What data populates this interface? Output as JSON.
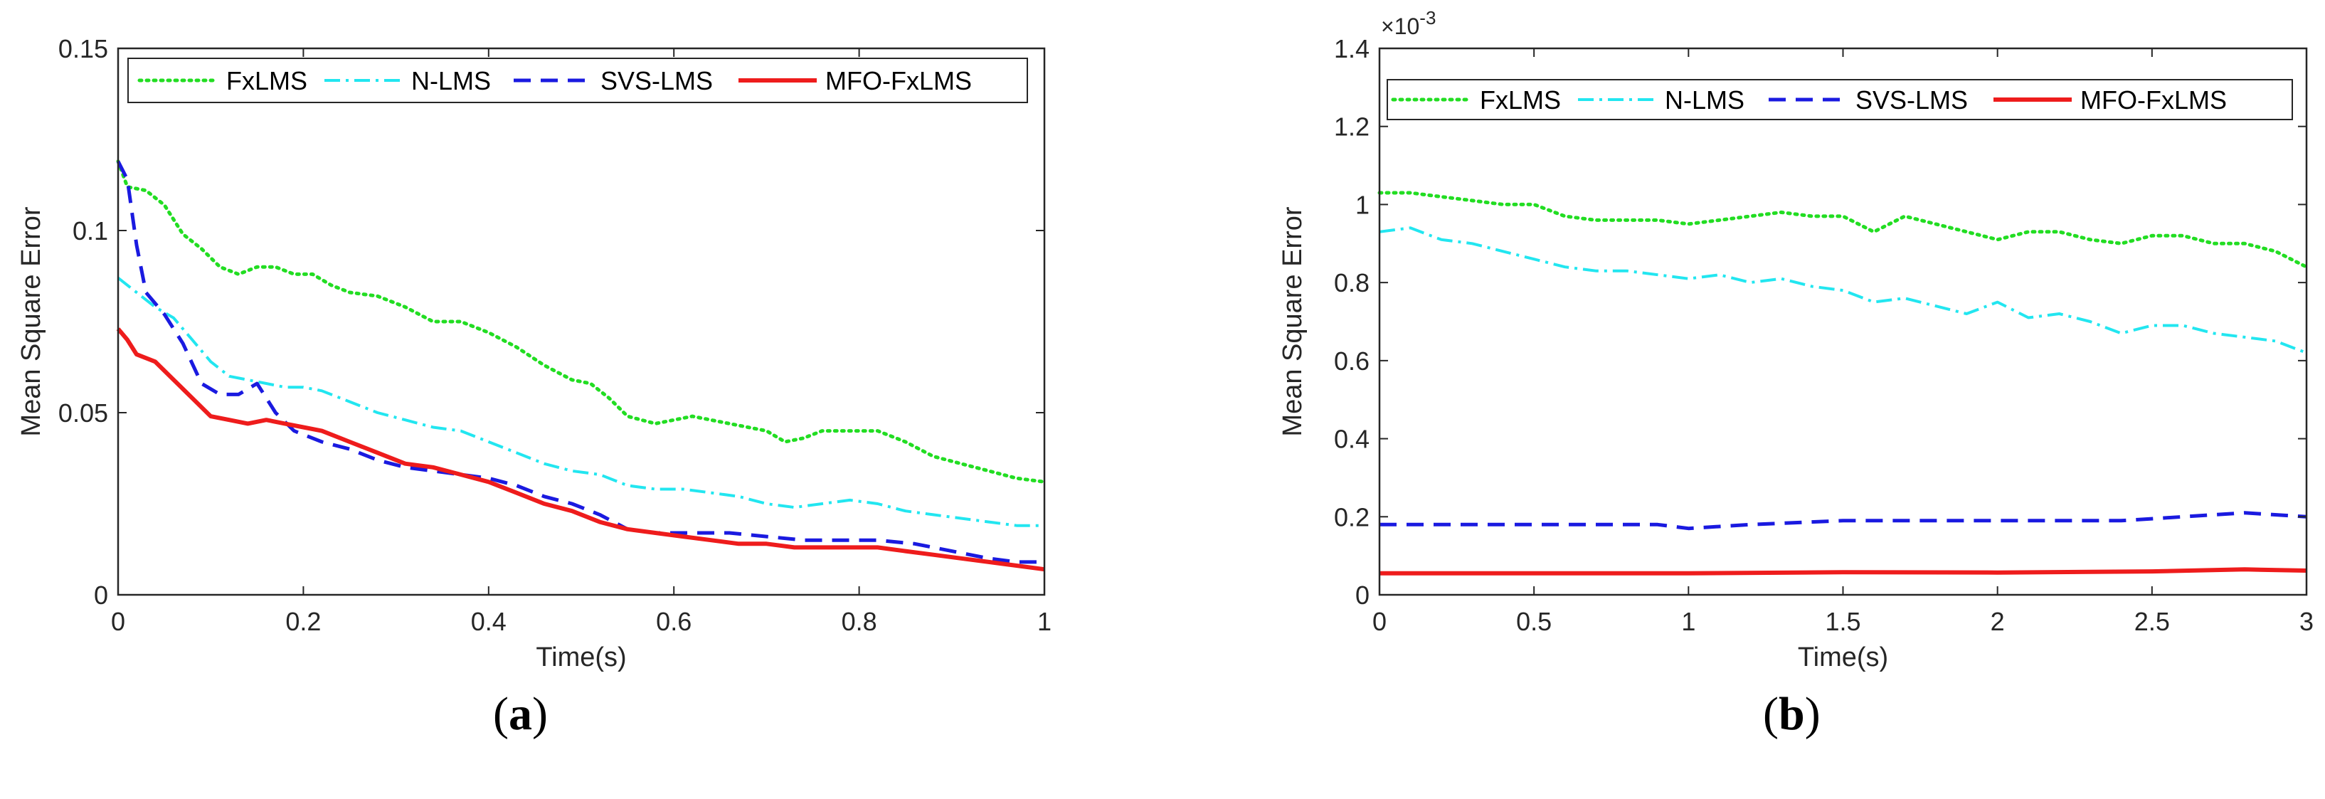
{
  "chart_data": [
    {
      "type": "line",
      "panel_label": "a",
      "xlabel": "Time(s)",
      "ylabel": "Mean Square Error",
      "xlim": [
        0,
        1
      ],
      "ylim": [
        0,
        0.15
      ],
      "xticks": [
        "0",
        "0.2",
        "0.4",
        "0.6",
        "0.8",
        "1"
      ],
      "xtick_values": [
        0,
        0.2,
        0.4,
        0.6,
        0.8,
        1
      ],
      "yticks": [
        "0",
        "0.05",
        "0.1",
        "0.15"
      ],
      "ytick_values": [
        0,
        0.05,
        0.1,
        0.15
      ],
      "legend_position": "top",
      "series": [
        {
          "name": "FxLMS",
          "color": "#22dd22",
          "style": "dotted",
          "x": [
            0,
            0.01,
            0.03,
            0.05,
            0.07,
            0.09,
            0.11,
            0.13,
            0.15,
            0.17,
            0.19,
            0.21,
            0.23,
            0.25,
            0.28,
            0.31,
            0.34,
            0.37,
            0.4,
            0.43,
            0.46,
            0.49,
            0.51,
            0.53,
            0.55,
            0.58,
            0.62,
            0.66,
            0.7,
            0.72,
            0.74,
            0.76,
            0.8,
            0.82,
            0.85,
            0.88,
            0.91,
            0.94,
            0.97,
            1.0
          ],
          "y": [
            0.119,
            0.112,
            0.111,
            0.107,
            0.099,
            0.095,
            0.09,
            0.088,
            0.09,
            0.09,
            0.088,
            0.088,
            0.085,
            0.083,
            0.082,
            0.079,
            0.075,
            0.075,
            0.072,
            0.068,
            0.063,
            0.059,
            0.058,
            0.054,
            0.049,
            0.047,
            0.049,
            0.047,
            0.045,
            0.042,
            0.043,
            0.045,
            0.045,
            0.045,
            0.042,
            0.038,
            0.036,
            0.034,
            0.032,
            0.031
          ]
        },
        {
          "name": "N-LMS",
          "color": "#22e6f0",
          "style": "dashdot",
          "x": [
            0,
            0.02,
            0.04,
            0.06,
            0.08,
            0.1,
            0.12,
            0.14,
            0.16,
            0.18,
            0.2,
            0.22,
            0.25,
            0.28,
            0.31,
            0.34,
            0.37,
            0.4,
            0.43,
            0.46,
            0.49,
            0.52,
            0.55,
            0.58,
            0.61,
            0.64,
            0.67,
            0.7,
            0.73,
            0.76,
            0.79,
            0.82,
            0.85,
            0.88,
            0.91,
            0.94,
            0.97,
            1.0
          ],
          "y": [
            0.087,
            0.083,
            0.079,
            0.076,
            0.07,
            0.064,
            0.06,
            0.059,
            0.058,
            0.057,
            0.057,
            0.056,
            0.053,
            0.05,
            0.048,
            0.046,
            0.045,
            0.042,
            0.039,
            0.036,
            0.034,
            0.033,
            0.03,
            0.029,
            0.029,
            0.028,
            0.027,
            0.025,
            0.024,
            0.025,
            0.026,
            0.025,
            0.023,
            0.022,
            0.021,
            0.02,
            0.019,
            0.019
          ]
        },
        {
          "name": "SVS-LMS",
          "color": "#1a1ae0",
          "style": "dashed",
          "x": [
            0,
            0.01,
            0.02,
            0.03,
            0.05,
            0.07,
            0.09,
            0.11,
            0.13,
            0.15,
            0.17,
            0.19,
            0.22,
            0.25,
            0.28,
            0.31,
            0.34,
            0.37,
            0.4,
            0.43,
            0.46,
            0.49,
            0.52,
            0.55,
            0.58,
            0.62,
            0.66,
            0.7,
            0.74,
            0.78,
            0.82,
            0.86,
            0.9,
            0.94,
            0.97,
            1.0
          ],
          "y": [
            0.119,
            0.114,
            0.096,
            0.083,
            0.077,
            0.069,
            0.058,
            0.055,
            0.055,
            0.058,
            0.05,
            0.045,
            0.042,
            0.04,
            0.037,
            0.035,
            0.034,
            0.033,
            0.032,
            0.03,
            0.027,
            0.025,
            0.022,
            0.018,
            0.017,
            0.017,
            0.017,
            0.016,
            0.015,
            0.015,
            0.015,
            0.014,
            0.012,
            0.01,
            0.009,
            0.009
          ]
        },
        {
          "name": "MFO-FxLMS",
          "color": "#ee1c1c",
          "style": "solid",
          "x": [
            0,
            0.01,
            0.02,
            0.04,
            0.06,
            0.08,
            0.1,
            0.12,
            0.14,
            0.16,
            0.18,
            0.2,
            0.22,
            0.25,
            0.28,
            0.31,
            0.34,
            0.37,
            0.4,
            0.43,
            0.46,
            0.49,
            0.52,
            0.55,
            0.58,
            0.61,
            0.64,
            0.67,
            0.7,
            0.73,
            0.76,
            0.79,
            0.82,
            0.85,
            0.88,
            0.91,
            0.94,
            0.97,
            1.0
          ],
          "y": [
            0.073,
            0.07,
            0.066,
            0.064,
            0.059,
            0.054,
            0.049,
            0.048,
            0.047,
            0.048,
            0.047,
            0.046,
            0.045,
            0.042,
            0.039,
            0.036,
            0.035,
            0.033,
            0.031,
            0.028,
            0.025,
            0.023,
            0.02,
            0.018,
            0.017,
            0.016,
            0.015,
            0.014,
            0.014,
            0.013,
            0.013,
            0.013,
            0.013,
            0.012,
            0.011,
            0.01,
            0.009,
            0.008,
            0.007
          ]
        }
      ]
    },
    {
      "type": "line",
      "panel_label": "b",
      "xlabel": "Time(s)",
      "ylabel": "Mean Square Error",
      "y_exponent": "×10",
      "y_exponent_power": "-3",
      "xlim": [
        0,
        3
      ],
      "ylim": [
        0,
        1.4
      ],
      "xticks": [
        "0",
        "0.5",
        "1",
        "1.5",
        "2",
        "2.5",
        "3"
      ],
      "xtick_values": [
        0,
        0.5,
        1,
        1.5,
        2,
        2.5,
        3
      ],
      "yticks": [
        "0",
        "0.2",
        "0.4",
        "0.6",
        "0.8",
        "1",
        "1.2",
        "1.4"
      ],
      "ytick_values": [
        0,
        0.2,
        0.4,
        0.6,
        0.8,
        1,
        1.2,
        1.4
      ],
      "legend_position": "top",
      "series": [
        {
          "name": "FxLMS",
          "color": "#22dd22",
          "style": "dotted",
          "x": [
            0,
            0.1,
            0.2,
            0.3,
            0.4,
            0.5,
            0.6,
            0.7,
            0.8,
            0.9,
            1.0,
            1.1,
            1.2,
            1.3,
            1.4,
            1.5,
            1.6,
            1.7,
            1.8,
            1.9,
            2.0,
            2.1,
            2.2,
            2.3,
            2.4,
            2.5,
            2.6,
            2.7,
            2.8,
            2.9,
            3.0
          ],
          "y": [
            1.03,
            1.03,
            1.02,
            1.01,
            1.0,
            1.0,
            0.97,
            0.96,
            0.96,
            0.96,
            0.95,
            0.96,
            0.97,
            0.98,
            0.97,
            0.97,
            0.93,
            0.97,
            0.95,
            0.93,
            0.91,
            0.93,
            0.93,
            0.91,
            0.9,
            0.92,
            0.92,
            0.9,
            0.9,
            0.88,
            0.84
          ]
        },
        {
          "name": "N-LMS",
          "color": "#22e6f0",
          "style": "dashdot",
          "x": [
            0,
            0.1,
            0.2,
            0.3,
            0.4,
            0.5,
            0.6,
            0.7,
            0.8,
            0.9,
            1.0,
            1.1,
            1.2,
            1.3,
            1.4,
            1.5,
            1.6,
            1.7,
            1.8,
            1.9,
            2.0,
            2.1,
            2.2,
            2.3,
            2.4,
            2.5,
            2.6,
            2.7,
            2.8,
            2.9,
            3.0
          ],
          "y": [
            0.93,
            0.94,
            0.91,
            0.9,
            0.88,
            0.86,
            0.84,
            0.83,
            0.83,
            0.82,
            0.81,
            0.82,
            0.8,
            0.81,
            0.79,
            0.78,
            0.75,
            0.76,
            0.74,
            0.72,
            0.75,
            0.71,
            0.72,
            0.7,
            0.67,
            0.69,
            0.69,
            0.67,
            0.66,
            0.65,
            0.62
          ]
        },
        {
          "name": "SVS-LMS",
          "color": "#1a1ae0",
          "style": "dashed",
          "x": [
            0,
            0.3,
            0.6,
            0.9,
            1.0,
            1.2,
            1.5,
            1.8,
            2.1,
            2.4,
            2.6,
            2.8,
            3.0
          ],
          "y": [
            0.18,
            0.18,
            0.18,
            0.18,
            0.17,
            0.18,
            0.19,
            0.19,
            0.19,
            0.19,
            0.2,
            0.21,
            0.2
          ]
        },
        {
          "name": "MFO-FxLMS",
          "color": "#ee1c1c",
          "style": "solid",
          "x": [
            0,
            0.5,
            1.0,
            1.5,
            2.0,
            2.5,
            2.8,
            3.0
          ],
          "y": [
            0.055,
            0.055,
            0.055,
            0.058,
            0.057,
            0.06,
            0.065,
            0.062
          ]
        }
      ]
    }
  ]
}
